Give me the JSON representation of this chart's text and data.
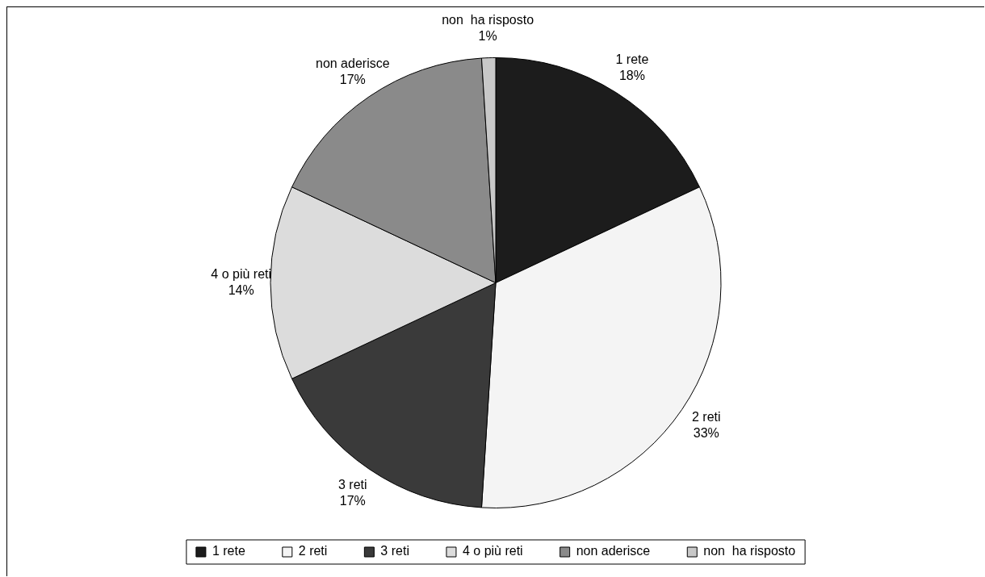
{
  "chart_data": {
    "type": "pie",
    "categories": [
      "1 rete",
      "2 reti",
      "3 reti",
      "4 o più reti",
      "non aderisce",
      "non  ha risposto"
    ],
    "values": [
      18,
      33,
      17,
      14,
      17,
      1
    ],
    "value_labels": [
      "18%",
      "33%",
      "17%",
      "14%",
      "17%",
      "1%"
    ],
    "colors": [
      "#1c1c1c",
      "#f4f4f4",
      "#3a3a3a",
      "#dcdcdc",
      "#8a8a8a",
      "#c8c8c8"
    ],
    "legend": "bottom"
  }
}
